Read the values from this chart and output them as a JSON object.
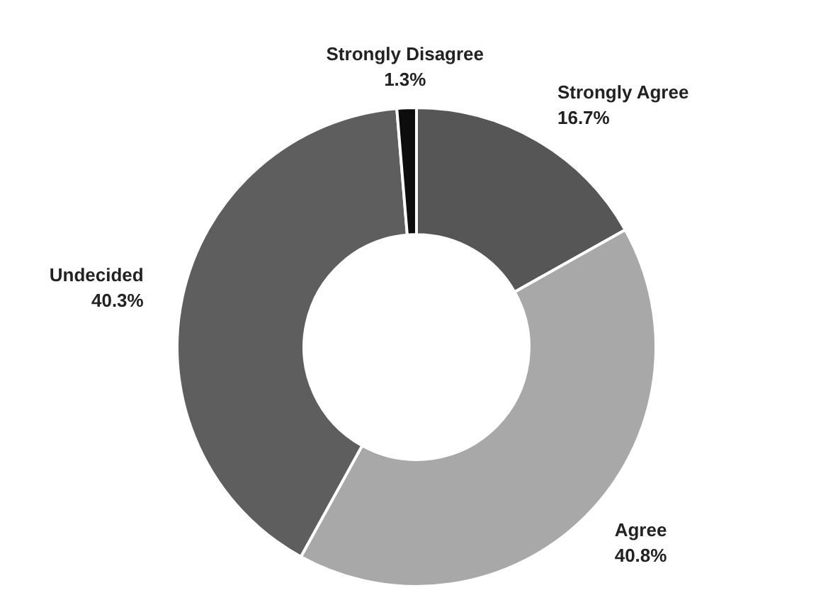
{
  "chart_data": {
    "type": "donut",
    "categories": [
      "Strongly Agree",
      "Agree",
      "Undecided",
      "Strongly Disagree"
    ],
    "values": [
      16.7,
      40.8,
      40.3,
      1.3
    ],
    "value_labels": [
      "16.7%",
      "40.8%",
      "40.3%",
      "1.3%"
    ],
    "colors": [
      "#565656",
      "#a8a8a8",
      "#5e5e5e",
      "#0d0d0d"
    ],
    "legend": false
  }
}
